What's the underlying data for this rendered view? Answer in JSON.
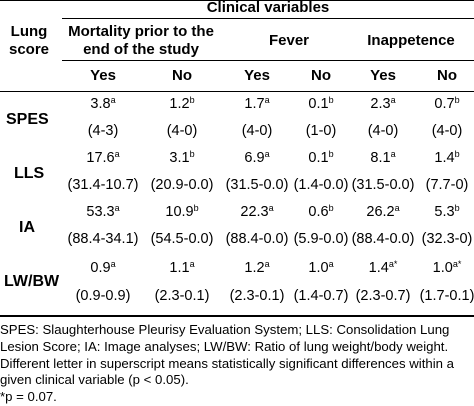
{
  "header": {
    "group_title": "Clinical variables",
    "row_label_line1": "Lung",
    "row_label_line2": "score",
    "columns": [
      {
        "line1": "Mortality prior to the",
        "line2": "end of the study"
      },
      {
        "line1": "Fever",
        "line2": ""
      },
      {
        "line1": "Inappetence",
        "line2": ""
      }
    ],
    "sub": [
      "Yes",
      "No",
      "Yes",
      "No",
      "Yes",
      "No"
    ]
  },
  "rows": [
    {
      "label": "SPES",
      "values": [
        {
          "v": "3.8",
          "s": "a"
        },
        {
          "v": "1.2",
          "s": "b"
        },
        {
          "v": "1.7",
          "s": "a"
        },
        {
          "v": "0.1",
          "s": "b"
        },
        {
          "v": "2.3",
          "s": "a"
        },
        {
          "v": "0.7",
          "s": "b"
        }
      ],
      "ranges": [
        "(4-3)",
        "(4-0)",
        "(4-0)",
        "(1-0)",
        "(4-0)",
        "(4-0)"
      ]
    },
    {
      "label": "LLS",
      "values": [
        {
          "v": "17.6",
          "s": "a"
        },
        {
          "v": "3.1",
          "s": "b"
        },
        {
          "v": "6.9",
          "s": "a"
        },
        {
          "v": "0.1",
          "s": "b"
        },
        {
          "v": "8.1",
          "s": "a"
        },
        {
          "v": "1.4",
          "s": "b"
        }
      ],
      "ranges": [
        "(31.4-10.7)",
        "(20.9-0.0)",
        "(31.5-0.0)",
        "(1.4-0.0)",
        "(31.5-0.0)",
        "(7.7-0)"
      ]
    },
    {
      "label": "IA",
      "values": [
        {
          "v": "53.3",
          "s": "a"
        },
        {
          "v": "10.9",
          "s": "b"
        },
        {
          "v": "22.3",
          "s": "a"
        },
        {
          "v": "0.6",
          "s": "b"
        },
        {
          "v": "26.2",
          "s": "a"
        },
        {
          "v": "5.3",
          "s": "b"
        }
      ],
      "ranges": [
        "(88.4-34.1)",
        "(54.5-0.0)",
        "(88.4-0.0)",
        "(5.9-0.0)",
        "(88.4-0.0)",
        "(32.3-0)"
      ]
    },
    {
      "label": "LW/BW",
      "values": [
        {
          "v": "0.9",
          "s": "a"
        },
        {
          "v": "1.1",
          "s": "a"
        },
        {
          "v": "1.2",
          "s": "a"
        },
        {
          "v": "1.0",
          "s": "a"
        },
        {
          "v": "1.4",
          "s": "a*"
        },
        {
          "v": "1.0",
          "s": "a*"
        }
      ],
      "ranges": [
        "(0.9-0.9)",
        "(2.3-0.1)",
        "(2.3-0.1)",
        "(1.4-0.7)",
        "(2.3-0.7)",
        "(1.7-0.1)"
      ]
    }
  ],
  "notes": [
    "SPES: Slaughterhouse Pleurisy Evaluation System; LLS: Consolidation Lung",
    "Lesion Score; IA: Image analyses; LW/BW: Ratio of lung weight/body weight.",
    "Different letter in superscript means statistically significant differences within a",
    "given clinical variable (p < 0.05).",
    "*p = 0.07."
  ]
}
